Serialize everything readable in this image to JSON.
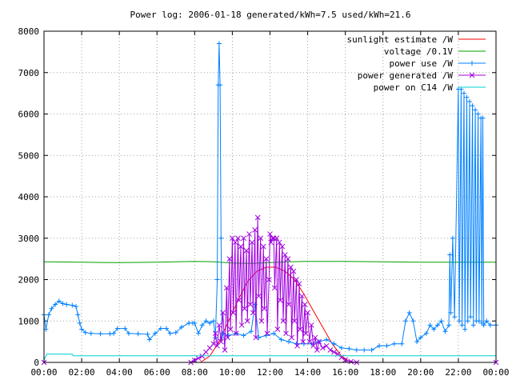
{
  "chart_data": {
    "type": "line",
    "title": "Power log: 2006-01-18 generated/kWh=7.5 used/kWh=21.6",
    "xlabel": "",
    "ylabel": "",
    "xlim": [
      0,
      24
    ],
    "ylim": [
      0,
      8000
    ],
    "x_tick_labels": [
      "00:00",
      "02:00",
      "04:00",
      "06:00",
      "08:00",
      "10:00",
      "12:00",
      "14:00",
      "16:00",
      "18:00",
      "20:00",
      "22:00",
      "00:00"
    ],
    "y_tick_labels": [
      "0",
      "1000",
      "2000",
      "3000",
      "4000",
      "5000",
      "6000",
      "7000",
      "8000"
    ],
    "y_ticks": [
      0,
      1000,
      2000,
      3000,
      4000,
      5000,
      6000,
      7000,
      8000
    ],
    "grid": true,
    "legend_position": "top-right",
    "series": [
      {
        "name": "sunlight estimate /W",
        "color": "#ff0000",
        "marker": "none",
        "points": [
          [
            0,
            0
          ],
          [
            8.3,
            0
          ],
          [
            8.8,
            150
          ],
          [
            9.3,
            500
          ],
          [
            9.8,
            1000
          ],
          [
            10.3,
            1500
          ],
          [
            10.8,
            1950
          ],
          [
            11.3,
            2200
          ],
          [
            11.8,
            2300
          ],
          [
            12.3,
            2300
          ],
          [
            12.8,
            2200
          ],
          [
            13.3,
            2000
          ],
          [
            13.8,
            1650
          ],
          [
            14.3,
            1250
          ],
          [
            14.8,
            850
          ],
          [
            15.3,
            450
          ],
          [
            15.8,
            150
          ],
          [
            16.3,
            0
          ],
          [
            24,
            0
          ]
        ]
      },
      {
        "name": "voltage /0.1V",
        "color": "#00a000",
        "marker": "none",
        "points": [
          [
            0,
            2430
          ],
          [
            2,
            2420
          ],
          [
            4,
            2410
          ],
          [
            6,
            2420
          ],
          [
            8,
            2440
          ],
          [
            9,
            2430
          ],
          [
            10,
            2400
          ],
          [
            11,
            2390
          ],
          [
            12,
            2410
          ],
          [
            13,
            2430
          ],
          [
            14,
            2440
          ],
          [
            16,
            2440
          ],
          [
            18,
            2430
          ],
          [
            20,
            2420
          ],
          [
            22,
            2420
          ],
          [
            24,
            2420
          ]
        ]
      },
      {
        "name": "power use /W",
        "color": "#0080ff",
        "marker": "plus",
        "points": [
          [
            0,
            1150
          ],
          [
            0.1,
            800
          ],
          [
            0.25,
            1150
          ],
          [
            0.4,
            1300
          ],
          [
            0.6,
            1400
          ],
          [
            0.8,
            1480
          ],
          [
            1,
            1420
          ],
          [
            1.2,
            1400
          ],
          [
            1.5,
            1380
          ],
          [
            1.7,
            1350
          ],
          [
            1.8,
            1150
          ],
          [
            1.9,
            950
          ],
          [
            2,
            800
          ],
          [
            2.2,
            720
          ],
          [
            2.5,
            700
          ],
          [
            3,
            690
          ],
          [
            3.5,
            690
          ],
          [
            3.7,
            700
          ],
          [
            3.9,
            820
          ],
          [
            4.3,
            820
          ],
          [
            4.5,
            700
          ],
          [
            5,
            690
          ],
          [
            5.5,
            680
          ],
          [
            5.6,
            550
          ],
          [
            5.9,
            700
          ],
          [
            6.2,
            820
          ],
          [
            6.5,
            820
          ],
          [
            6.7,
            700
          ],
          [
            7,
            720
          ],
          [
            7.3,
            850
          ],
          [
            7.7,
            950
          ],
          [
            7.9,
            950
          ],
          [
            8,
            950
          ],
          [
            8.2,
            700
          ],
          [
            8.4,
            900
          ],
          [
            8.6,
            1000
          ],
          [
            8.8,
            950
          ],
          [
            9,
            1000
          ],
          [
            9.1,
            600
          ],
          [
            9.2,
            2000
          ],
          [
            9.25,
            6700
          ],
          [
            9.3,
            7700
          ],
          [
            9.35,
            6700
          ],
          [
            9.4,
            3000
          ],
          [
            9.45,
            600
          ],
          [
            9.5,
            700
          ],
          [
            9.8,
            650
          ],
          [
            10.2,
            700
          ],
          [
            10.6,
            650
          ],
          [
            11,
            750
          ],
          [
            11.2,
            1400
          ],
          [
            11.4,
            600
          ],
          [
            11.8,
            650
          ],
          [
            12.2,
            700
          ],
          [
            12.6,
            550
          ],
          [
            13,
            500
          ],
          [
            13.4,
            450
          ],
          [
            13.8,
            450
          ],
          [
            14.2,
            450
          ],
          [
            14.6,
            500
          ],
          [
            15,
            550
          ],
          [
            15.4,
            450
          ],
          [
            15.8,
            350
          ],
          [
            16.2,
            330
          ],
          [
            16.6,
            300
          ],
          [
            17,
            300
          ],
          [
            17.4,
            300
          ],
          [
            17.8,
            400
          ],
          [
            18.2,
            400
          ],
          [
            18.6,
            450
          ],
          [
            19,
            450
          ],
          [
            19.2,
            1000
          ],
          [
            19.4,
            1200
          ],
          [
            19.6,
            1000
          ],
          [
            19.8,
            500
          ],
          [
            20,
            600
          ],
          [
            20.3,
            700
          ],
          [
            20.5,
            900
          ],
          [
            20.7,
            800
          ],
          [
            20.9,
            900
          ],
          [
            21.1,
            1000
          ],
          [
            21.3,
            750
          ],
          [
            21.5,
            900
          ],
          [
            21.55,
            2600
          ],
          [
            21.6,
            1200
          ],
          [
            21.7,
            3000
          ],
          [
            21.8,
            1100
          ],
          [
            22,
            6600
          ],
          [
            22.05,
            1000
          ],
          [
            22.15,
            6600
          ],
          [
            22.2,
            900
          ],
          [
            22.3,
            6500
          ],
          [
            22.35,
            800
          ],
          [
            22.45,
            6400
          ],
          [
            22.5,
            1000
          ],
          [
            22.6,
            6300
          ],
          [
            22.65,
            1100
          ],
          [
            22.75,
            6200
          ],
          [
            22.8,
            900
          ],
          [
            22.9,
            6100
          ],
          [
            22.95,
            1000
          ],
          [
            23.05,
            6000
          ],
          [
            23.1,
            1000
          ],
          [
            23.2,
            5900
          ],
          [
            23.25,
            950
          ],
          [
            23.3,
            5900
          ],
          [
            23.35,
            900
          ],
          [
            23.5,
            1000
          ],
          [
            23.7,
            900
          ],
          [
            24,
            900
          ]
        ]
      },
      {
        "name": "power generated /W",
        "color": "#a000e0",
        "marker": "cross",
        "points": [
          [
            0,
            0
          ],
          [
            7.8,
            0
          ],
          [
            8,
            50
          ],
          [
            8.2,
            100
          ],
          [
            8.4,
            150
          ],
          [
            8.6,
            250
          ],
          [
            8.8,
            350
          ],
          [
            9,
            450
          ],
          [
            9.1,
            700
          ],
          [
            9.2,
            400
          ],
          [
            9.3,
            900
          ],
          [
            9.4,
            500
          ],
          [
            9.5,
            1200
          ],
          [
            9.6,
            300
          ],
          [
            9.7,
            1800
          ],
          [
            9.75,
            600
          ],
          [
            9.85,
            2500
          ],
          [
            9.9,
            800
          ],
          [
            10,
            3000
          ],
          [
            10.05,
            1200
          ],
          [
            10.15,
            2900
          ],
          [
            10.2,
            700
          ],
          [
            10.3,
            3000
          ],
          [
            10.35,
            1500
          ],
          [
            10.45,
            2800
          ],
          [
            10.5,
            900
          ],
          [
            10.6,
            3000
          ],
          [
            10.65,
            1300
          ],
          [
            10.75,
            2700
          ],
          [
            10.8,
            1000
          ],
          [
            10.9,
            3100
          ],
          [
            10.95,
            1400
          ],
          [
            11.05,
            2900
          ],
          [
            11.1,
            1200
          ],
          [
            11.2,
            3200
          ],
          [
            11.25,
            600
          ],
          [
            11.35,
            3500
          ],
          [
            11.4,
            1600
          ],
          [
            11.5,
            3000
          ],
          [
            11.55,
            1000
          ],
          [
            11.65,
            2800
          ],
          [
            11.7,
            1300
          ],
          [
            11.8,
            2500
          ],
          [
            11.85,
            700
          ],
          [
            11.95,
            2000
          ],
          [
            12,
            3100
          ],
          [
            12.05,
            2900
          ],
          [
            12.15,
            3000
          ],
          [
            12.2,
            3000
          ],
          [
            12.25,
            1800
          ],
          [
            12.35,
            3000
          ],
          [
            12.4,
            800
          ],
          [
            12.5,
            2900
          ],
          [
            12.55,
            1500
          ],
          [
            12.65,
            2800
          ],
          [
            12.7,
            1000
          ],
          [
            12.8,
            2600
          ],
          [
            12.85,
            700
          ],
          [
            12.95,
            2500
          ],
          [
            13,
            1400
          ],
          [
            13.1,
            2300
          ],
          [
            13.15,
            600
          ],
          [
            13.25,
            2200
          ],
          [
            13.3,
            1000
          ],
          [
            13.4,
            2000
          ],
          [
            13.45,
            400
          ],
          [
            13.55,
            1900
          ],
          [
            13.6,
            800
          ],
          [
            13.7,
            1600
          ],
          [
            13.75,
            500
          ],
          [
            13.85,
            1400
          ],
          [
            13.9,
            700
          ],
          [
            14,
            1200
          ],
          [
            14.1,
            500
          ],
          [
            14.2,
            900
          ],
          [
            14.3,
            400
          ],
          [
            14.4,
            600
          ],
          [
            14.5,
            300
          ],
          [
            14.6,
            500
          ],
          [
            14.8,
            350
          ],
          [
            15,
            400
          ],
          [
            15.2,
            300
          ],
          [
            15.4,
            250
          ],
          [
            15.6,
            200
          ],
          [
            15.8,
            120
          ],
          [
            16,
            60
          ],
          [
            16.3,
            20
          ],
          [
            16.6,
            0
          ],
          [
            24,
            0
          ]
        ]
      },
      {
        "name": "power on C14 /W",
        "color": "#00d0d0",
        "marker": "none",
        "points": [
          [
            0,
            60
          ],
          [
            0.15,
            200
          ],
          [
            1.5,
            200
          ],
          [
            1.55,
            160
          ],
          [
            24,
            160
          ]
        ]
      }
    ]
  }
}
